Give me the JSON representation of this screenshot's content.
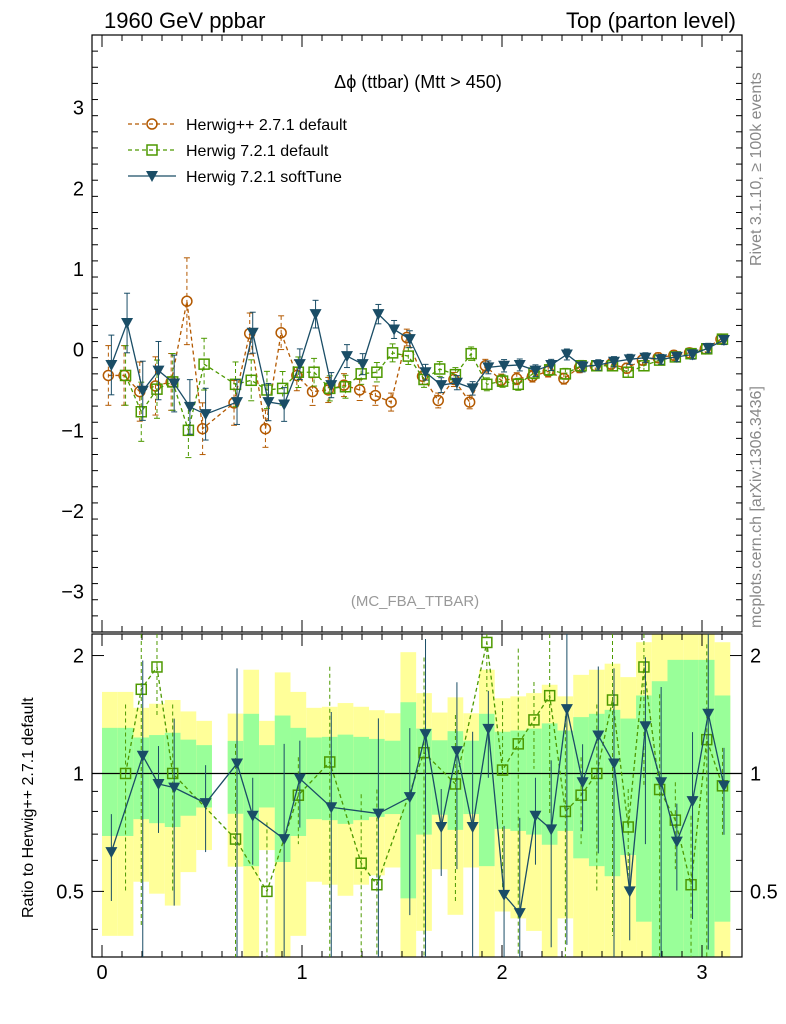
{
  "header": {
    "left": "1960 GeV ppbar",
    "right": "Top (parton level)"
  },
  "side_labels": {
    "rivet": "Rivet 3.1.10, ≥ 100k events",
    "mcplots": "mcplots.cern.ch [arXiv:1306.3436]"
  },
  "chart_data": {
    "type": "line",
    "title": "Δϕ (ttbar) (Mtt > 450)",
    "watermark": "(MC_FBA_TTBAR)",
    "xlim": [
      -0.05,
      3.2
    ],
    "ylim": [
      -3.5,
      3.9
    ],
    "yticks": [
      -3,
      -2,
      -1,
      0,
      1,
      2,
      3
    ],
    "xticks": [
      0,
      1,
      2,
      3
    ],
    "xtick_labels": [
      "0",
      "1",
      "2",
      "3"
    ],
    "ratio_ylabel": "Ratio to Herwig++ 2.7.1 default",
    "ratio_ylim": [
      0.34,
      2.27
    ],
    "ratio_yticks": [
      0.5,
      1,
      2
    ],
    "ratio_ytick_labels": [
      "0.5",
      "1",
      "2"
    ],
    "legend_position": "top-left",
    "x": [
      0.0393,
      0.1178,
      0.1963,
      0.2749,
      0.3534,
      0.432,
      0.5105,
      0.589,
      0.6676,
      0.7461,
      0.8247,
      0.9032,
      0.9817,
      1.0603,
      1.1388,
      1.2174,
      1.2959,
      1.3744,
      1.453,
      1.5315,
      1.6101,
      1.6886,
      1.7671,
      1.8457,
      1.9242,
      2.0028,
      2.0813,
      2.1598,
      2.2384,
      2.3169,
      2.3955,
      2.474,
      2.5525,
      2.6311,
      2.7096,
      2.7882,
      2.8667,
      2.9452,
      3.0238,
      3.1023
    ],
    "series": [
      {
        "name": "Herwig++ 2.7.1 default",
        "color": "#b35900",
        "marker": "circle",
        "values": [
          -0.32,
          -0.32,
          -0.52,
          -0.45,
          -0.4,
          0.6,
          -0.98,
          null,
          -0.66,
          0.2,
          -0.98,
          0.21,
          -0.32,
          -0.52,
          -0.5,
          -0.44,
          -0.5,
          -0.57,
          -0.65,
          0.15,
          -0.33,
          -0.63,
          -0.37,
          -0.65,
          -0.2,
          -0.38,
          -0.36,
          -0.33,
          -0.27,
          -0.36,
          -0.22,
          -0.2,
          -0.18,
          -0.23,
          -0.13,
          -0.1,
          -0.07,
          -0.04,
          0.01,
          0.13
        ]
      },
      {
        "name": "Herwig 7.2.1 default",
        "color": "#4d9900",
        "marker": "square",
        "values": [
          null,
          -0.32,
          -0.77,
          -0.49,
          -0.4,
          -1.0,
          -0.18,
          null,
          -0.43,
          -0.38,
          -0.5,
          -0.48,
          -0.28,
          -0.28,
          -0.48,
          -0.46,
          -0.3,
          -0.28,
          -0.04,
          -0.08,
          -0.37,
          -0.24,
          -0.31,
          -0.05,
          -0.43,
          -0.39,
          -0.43,
          -0.29,
          -0.25,
          -0.3,
          -0.2,
          -0.2,
          -0.2,
          -0.28,
          -0.2,
          -0.13,
          -0.09,
          -0.05,
          0.01,
          0.13
        ]
      },
      {
        "name": "Herwig 7.2.1 softTune",
        "color": "#1a4d66",
        "marker": "triangle-down",
        "values": [
          -0.19,
          0.33,
          -0.51,
          -0.26,
          -0.42,
          -0.71,
          -0.8,
          null,
          -0.65,
          0.21,
          -0.65,
          -0.68,
          -0.18,
          0.44,
          -0.44,
          -0.08,
          -0.18,
          0.44,
          0.25,
          0.13,
          -0.28,
          -0.44,
          -0.41,
          -0.48,
          -0.22,
          -0.2,
          -0.19,
          -0.26,
          -0.19,
          -0.06,
          -0.21,
          -0.19,
          -0.15,
          -0.12,
          -0.1,
          -0.12,
          -0.09,
          -0.06,
          0.02,
          0.12
        ]
      }
    ],
    "ratio_series": [
      {
        "name": "Herwig 7.2.1 default",
        "values": [
          null,
          1.0,
          1.64,
          1.87,
          1.0,
          null,
          null,
          null,
          0.68,
          null,
          0.5,
          null,
          0.88,
          null,
          1.07,
          null,
          0.59,
          0.52,
          null,
          null,
          1.13,
          null,
          0.94,
          null,
          2.16,
          1.02,
          1.19,
          1.37,
          1.58,
          0.8,
          0.88,
          1.0,
          1.54,
          0.73,
          1.87,
          0.91,
          0.76,
          0.52,
          1.22,
          0.93
        ]
      },
      {
        "name": "Herwig 7.2.1 softTune",
        "values": [
          0.63,
          null,
          1.11,
          0.94,
          0.92,
          null,
          0.84,
          null,
          1.06,
          0.78,
          null,
          0.68,
          0.97,
          null,
          0.82,
          null,
          null,
          0.79,
          null,
          0.87,
          1.26,
          0.73,
          1.14,
          0.73,
          1.3,
          0.49,
          0.44,
          0.78,
          0.72,
          1.46,
          0.95,
          1.25,
          1.06,
          0.5,
          1.32,
          0.95,
          0.67,
          0.85,
          1.42,
          0.93
        ]
      }
    ]
  }
}
